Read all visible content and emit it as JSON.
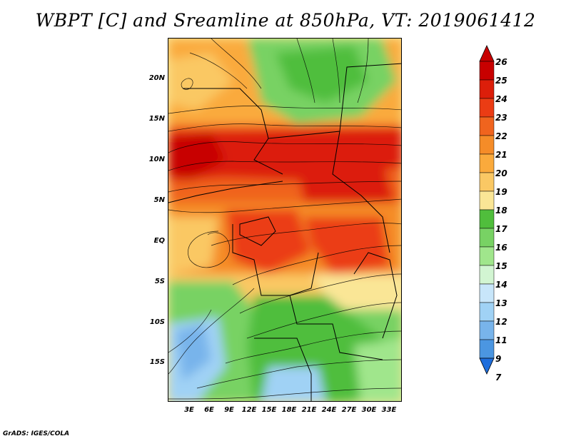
{
  "title": "WBPT [C] and Sreamline at 850hPa, VT: 2019061412",
  "footer": "GrADS: IGES/COLA",
  "map": {
    "variable": "WBPT",
    "units": "C",
    "level": "850hPa",
    "valid_time": "2019061412",
    "lat_ticks": [
      "20N",
      "15N",
      "10N",
      "5N",
      "EQ",
      "5S",
      "10S",
      "15S"
    ],
    "lon_ticks": [
      "3E",
      "6E",
      "9E",
      "12E",
      "15E",
      "18E",
      "21E",
      "24E",
      "27E",
      "30E",
      "33E"
    ]
  },
  "colorbar": {
    "labels": [
      "26",
      "25",
      "24",
      "23",
      "22",
      "21",
      "20",
      "19",
      "18",
      "17",
      "16",
      "15",
      "14",
      "13",
      "12",
      "11",
      "9",
      "7"
    ],
    "colors": [
      "#c80000",
      "#dc1e0a",
      "#eb3c14",
      "#f0641e",
      "#f58c28",
      "#faaa3c",
      "#fac864",
      "#fae696",
      "#50be3c",
      "#78d264",
      "#a0e68c",
      "#d2f5d2",
      "#c8e6fa",
      "#a0d2f5",
      "#78b4eb",
      "#4b96e1",
      "#1e6edc"
    ]
  }
}
